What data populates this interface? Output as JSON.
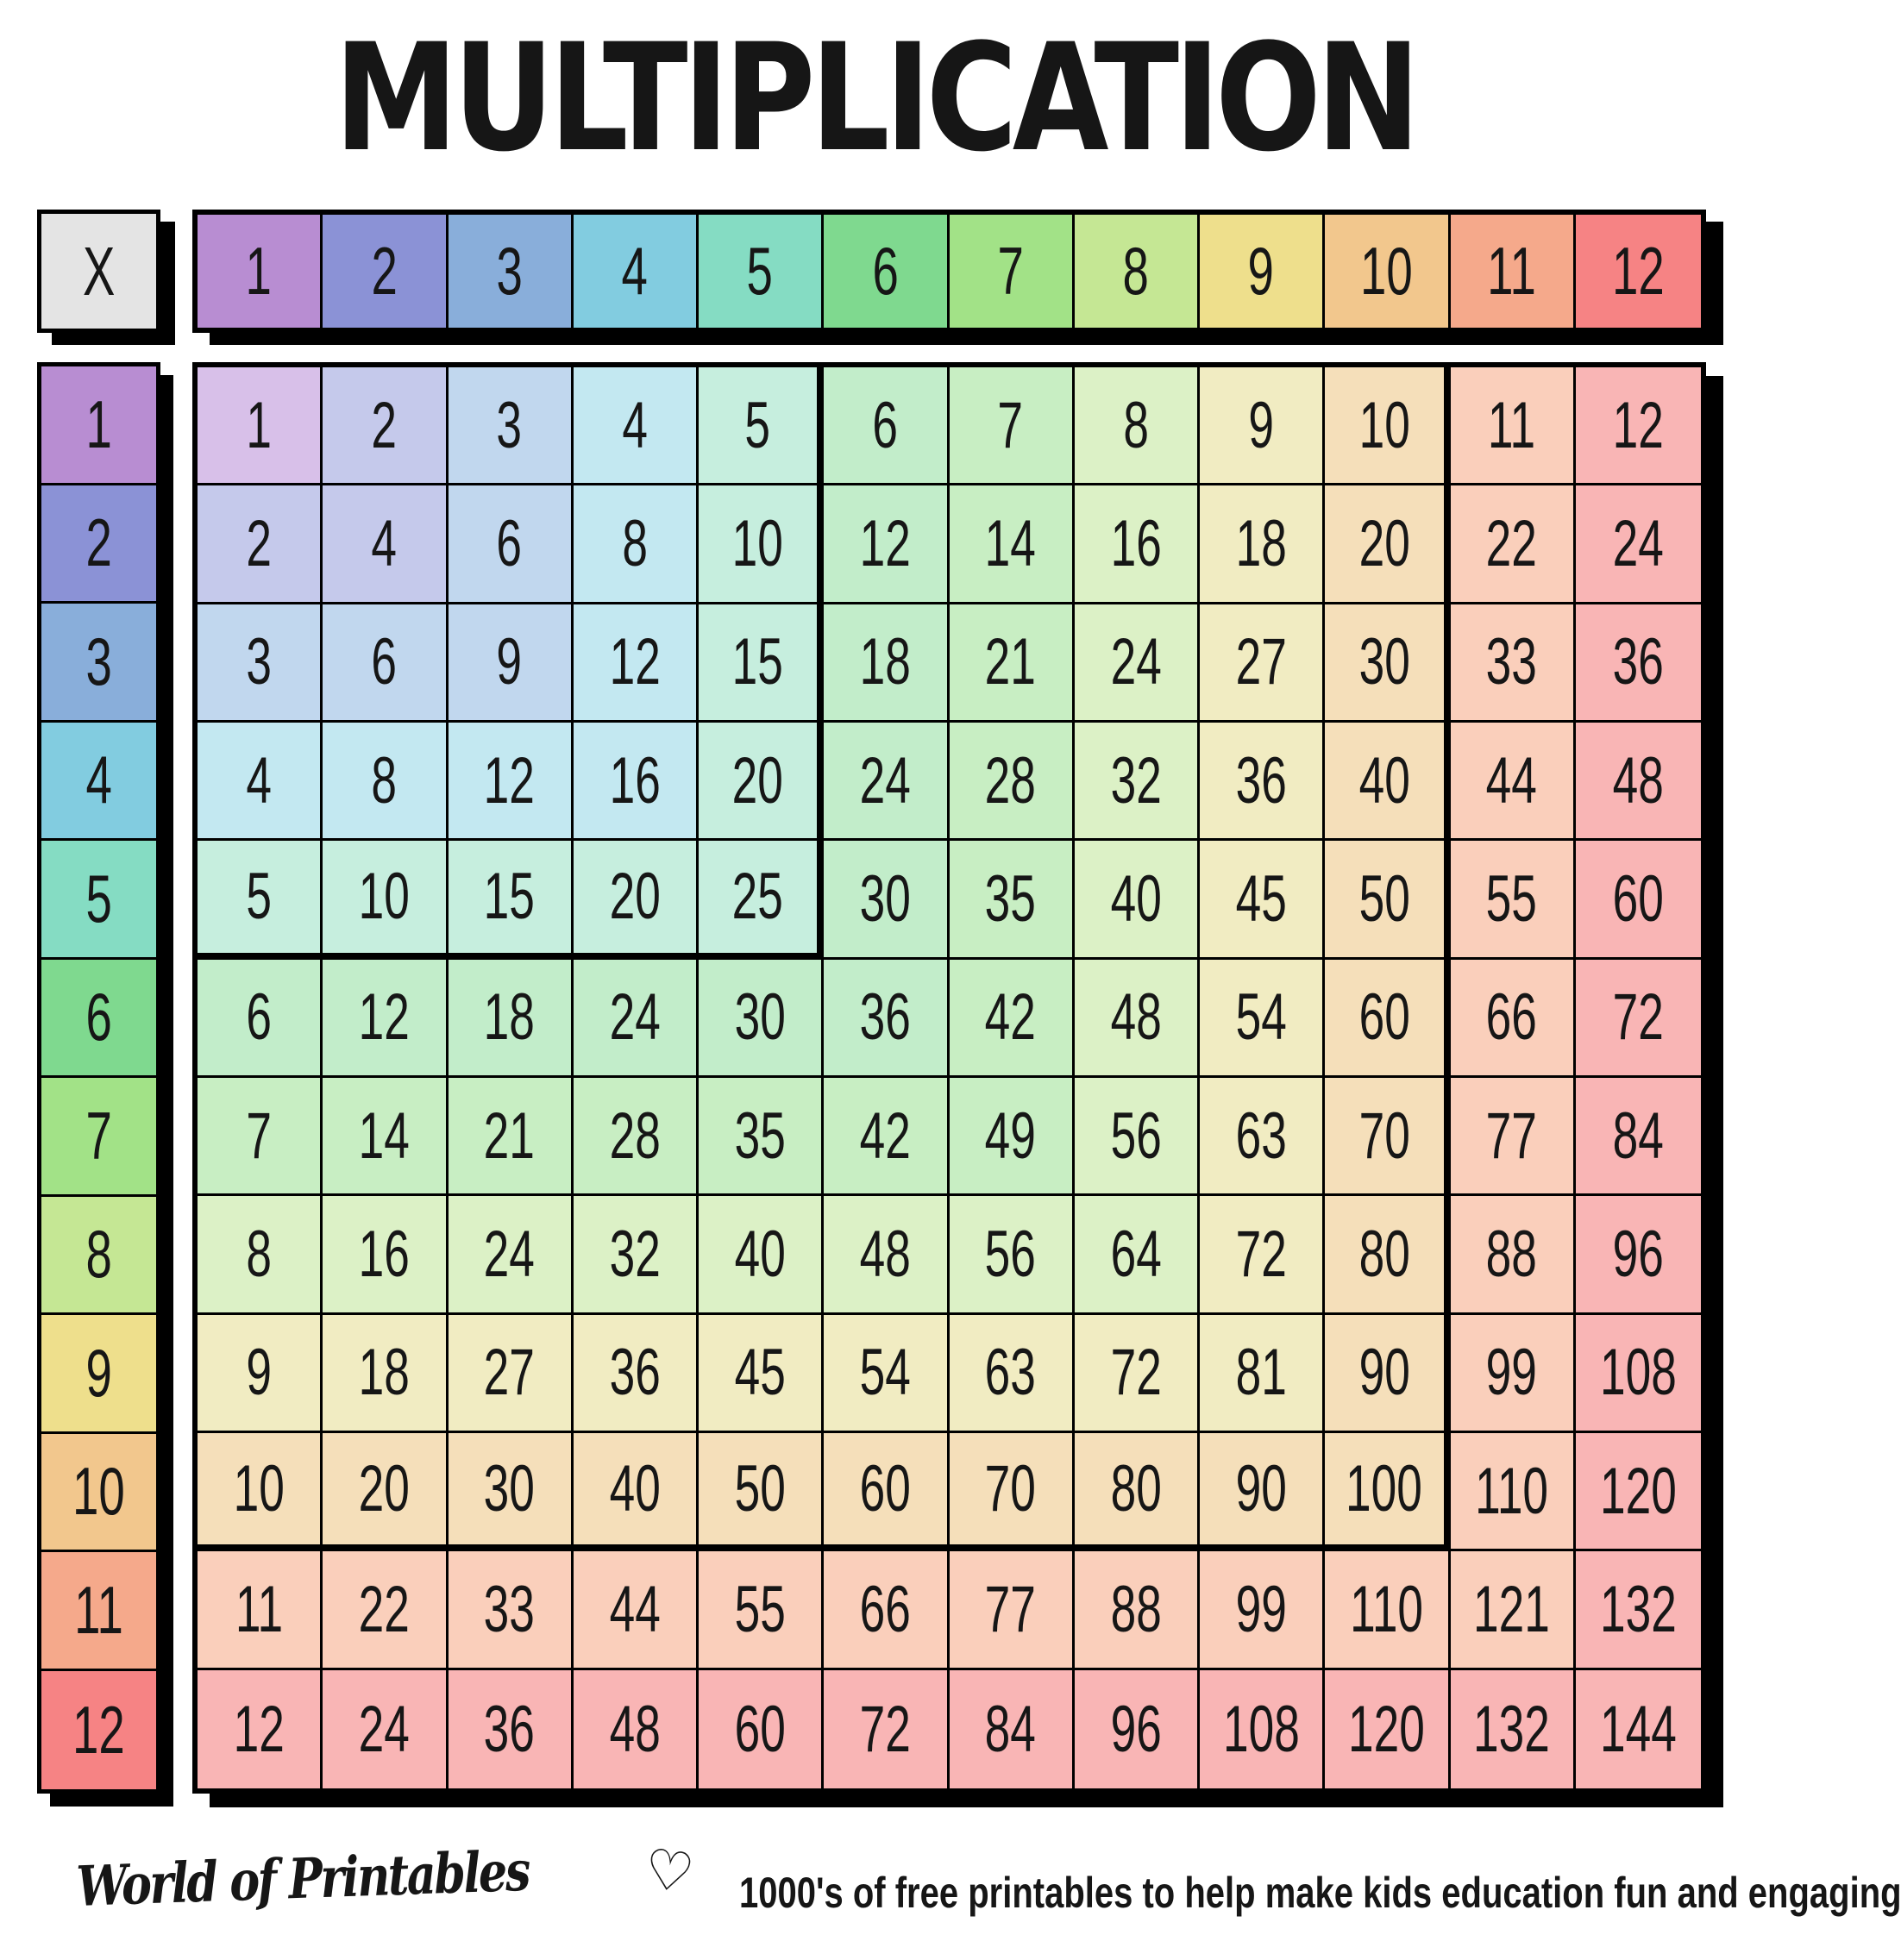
{
  "title": "MULTIPLICATION",
  "table": {
    "corner_label": "X",
    "col_headers": [
      "1",
      "2",
      "3",
      "4",
      "5",
      "6",
      "7",
      "8",
      "9",
      "10",
      "11",
      "12"
    ],
    "row_headers": [
      "1",
      "2",
      "3",
      "4",
      "5",
      "6",
      "7",
      "8",
      "9",
      "10",
      "11",
      "12"
    ],
    "cells": [
      [
        "1",
        "2",
        "3",
        "4",
        "5",
        "6",
        "7",
        "8",
        "9",
        "10",
        "11",
        "12"
      ],
      [
        "2",
        "4",
        "6",
        "8",
        "10",
        "12",
        "14",
        "16",
        "18",
        "20",
        "22",
        "24"
      ],
      [
        "3",
        "6",
        "9",
        "12",
        "15",
        "18",
        "21",
        "24",
        "27",
        "30",
        "33",
        "36"
      ],
      [
        "4",
        "8",
        "12",
        "16",
        "20",
        "24",
        "28",
        "32",
        "36",
        "40",
        "44",
        "48"
      ],
      [
        "5",
        "10",
        "15",
        "20",
        "25",
        "30",
        "35",
        "40",
        "45",
        "50",
        "55",
        "60"
      ],
      [
        "6",
        "12",
        "18",
        "24",
        "30",
        "36",
        "42",
        "48",
        "54",
        "60",
        "66",
        "72"
      ],
      [
        "7",
        "14",
        "21",
        "28",
        "35",
        "42",
        "49",
        "56",
        "63",
        "70",
        "77",
        "84"
      ],
      [
        "8",
        "16",
        "24",
        "32",
        "40",
        "48",
        "56",
        "64",
        "72",
        "80",
        "88",
        "96"
      ],
      [
        "9",
        "18",
        "27",
        "36",
        "45",
        "54",
        "63",
        "72",
        "81",
        "90",
        "99",
        "108"
      ],
      [
        "10",
        "20",
        "30",
        "40",
        "50",
        "60",
        "70",
        "80",
        "90",
        "100",
        "110",
        "120"
      ],
      [
        "11",
        "22",
        "33",
        "44",
        "55",
        "66",
        "77",
        "88",
        "99",
        "110",
        "121",
        "132"
      ],
      [
        "12",
        "24",
        "36",
        "48",
        "60",
        "72",
        "84",
        "96",
        "108",
        "120",
        "132",
        "144"
      ]
    ],
    "highlight_squares": [
      5,
      10
    ]
  },
  "colors": {
    "corner_bg": "#e4e4e4",
    "border": "#000000",
    "text": "#161616",
    "header": [
      "#b88dd2",
      "#8b92d6",
      "#89aeda",
      "#82cce0",
      "#85dcc3",
      "#7fd98f",
      "#a2e287",
      "#c5e794",
      "#eedf8c",
      "#f2c78d",
      "#f5a98b",
      "#f68384"
    ],
    "tint": [
      "#d8c0e9",
      "#c5c9eb",
      "#c1d7ee",
      "#c3e8f1",
      "#c6eede",
      "#c2edca",
      "#c8eec3",
      "#dcf1c6",
      "#f1ecc2",
      "#f5dfba",
      "#facfbb",
      "#f9b5b5"
    ]
  },
  "footer": {
    "brand": "World of Printables",
    "heart_glyph": "♡",
    "tagline": "1000's of free printables to help make kids education fun and engaging"
  }
}
